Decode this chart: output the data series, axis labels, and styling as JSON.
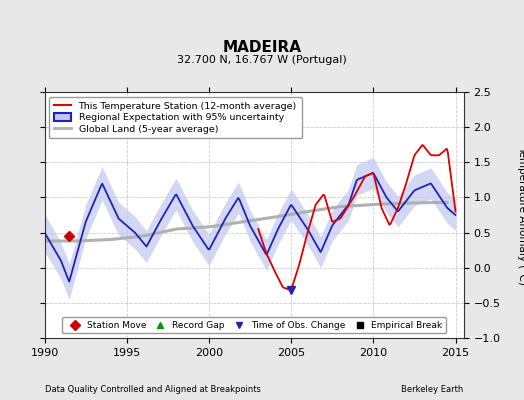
{
  "title": "MADEIRA",
  "subtitle": "32.700 N, 16.767 W (Portugal)",
  "xlabel_left": "Data Quality Controlled and Aligned at Breakpoints",
  "xlabel_right": "Berkeley Earth",
  "ylabel": "Temperature Anomaly (°C)",
  "xlim": [
    1990,
    2015.5
  ],
  "ylim": [
    -1,
    2.5
  ],
  "yticks": [
    -1,
    -0.5,
    0,
    0.5,
    1,
    1.5,
    2,
    2.5
  ],
  "xticks": [
    1990,
    1995,
    2000,
    2005,
    2010,
    2015
  ],
  "bg_color": "#e8e8e8",
  "plot_bg_color": "#ffffff",
  "grid_color": "#cccccc",
  "red_line_color": "#dd0000",
  "blue_line_color": "#2222bb",
  "blue_fill_color": "#c0c8f0",
  "gray_line_color": "#b0b0b0",
  "legend_items": [
    {
      "label": "This Temperature Station (12-month average)",
      "color": "#dd0000",
      "lw": 1.5
    },
    {
      "label": "Regional Expectation with 95% uncertainty",
      "color": "#2222bb",
      "lw": 1.5
    },
    {
      "label": "Global Land (5-year average)",
      "color": "#b0b0b0",
      "lw": 2.0
    }
  ],
  "marker_legend": [
    {
      "label": "Station Move",
      "marker": "D",
      "color": "#cc0000",
      "ms": 5
    },
    {
      "label": "Record Gap",
      "marker": "^",
      "color": "#009900",
      "ms": 5
    },
    {
      "label": "Time of Obs. Change",
      "marker": "v",
      "color": "#2222bb",
      "ms": 5
    },
    {
      "label": "Empirical Break",
      "marker": "s",
      "color": "#000000",
      "ms": 4
    }
  ],
  "station_move_x": 1991.5,
  "station_move_y": 0.45,
  "obs_change_x": 2005.0,
  "obs_change_y": -0.32
}
